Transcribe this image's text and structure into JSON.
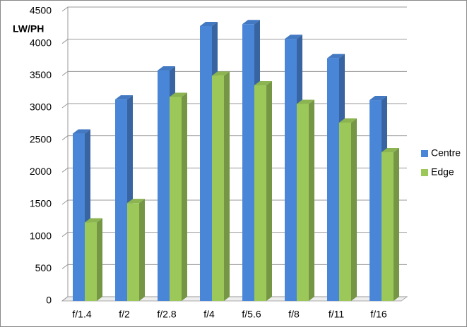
{
  "chart_data": {
    "type": "bar3d",
    "y_label": "LW/PH",
    "categories": [
      "f/1.4",
      "f/2",
      "f/2.8",
      "f/4",
      "f/5.6",
      "f/8",
      "f/11",
      "f/16"
    ],
    "series": [
      {
        "name": "Centre",
        "color": "#4a86d8",
        "values": [
          2600,
          3130,
          3580,
          4270,
          4300,
          4070,
          3770,
          3120
        ]
      },
      {
        "name": "Edge",
        "color": "#9cc85a",
        "values": [
          1220,
          1520,
          3170,
          3500,
          3350,
          3060,
          2770,
          2310
        ]
      }
    ],
    "ylim": [
      0,
      4500
    ],
    "yticks": [
      0,
      500,
      1000,
      1500,
      2000,
      2500,
      3000,
      3500,
      4000,
      4500
    ],
    "grid": true
  }
}
